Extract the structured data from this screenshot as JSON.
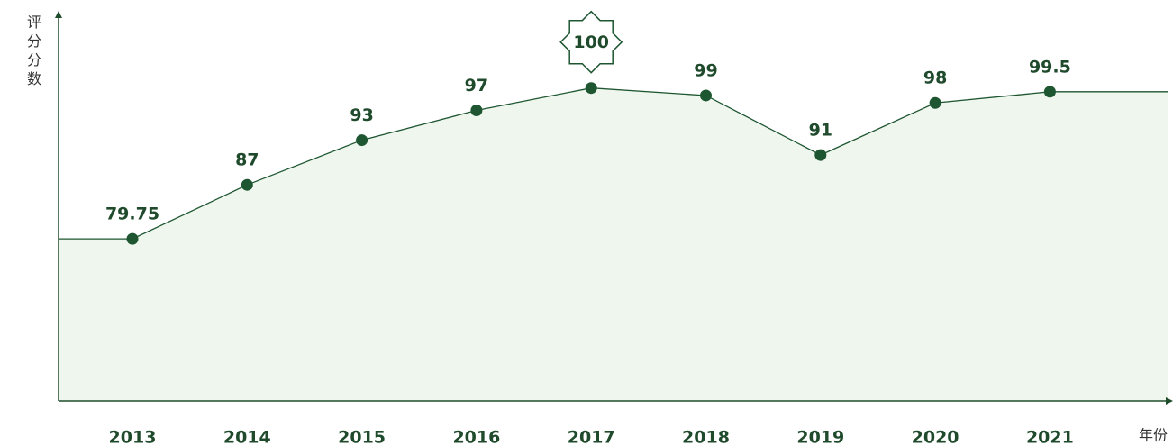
{
  "chart_data": {
    "type": "line",
    "y_label": "评分分数",
    "x_label": "年份",
    "categories": [
      "2013",
      "2014",
      "2015",
      "2016",
      "2017",
      "2018",
      "2019",
      "2020",
      "2021"
    ],
    "values": [
      79.75,
      87,
      93,
      97,
      100,
      99,
      91,
      98,
      99.5
    ],
    "color": "#1e5631",
    "fill": "#eef6ee",
    "ylim": [
      58,
      110
    ]
  }
}
